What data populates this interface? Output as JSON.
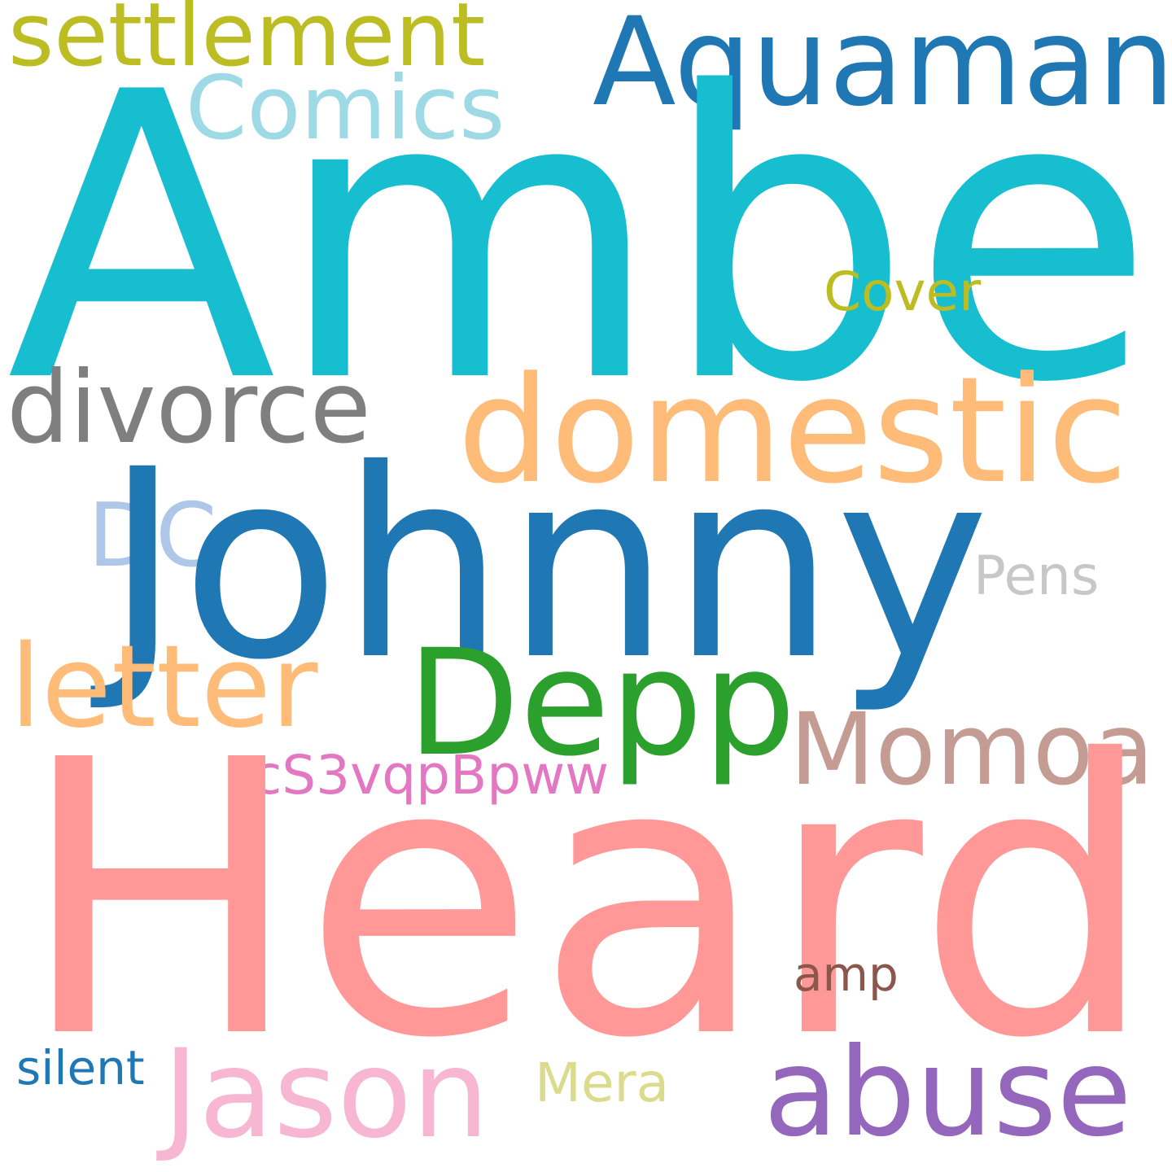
{
  "words": {
    "amber": {
      "text": "Amber",
      "color": "#17becf"
    },
    "heard": {
      "text": "Heard",
      "color": "#ff9896"
    },
    "johnny": {
      "text": "Johnny",
      "color": "#1f77b4"
    },
    "domestic": {
      "text": "domestic",
      "color": "#ffbb78"
    },
    "depp": {
      "text": "Depp",
      "color": "#2ca02c"
    },
    "aquaman": {
      "text": "Aquaman",
      "color": "#1f77b4"
    },
    "abuse": {
      "text": "abuse",
      "color": "#9467bd"
    },
    "jason": {
      "text": "Jason",
      "color": "#f7b6d2"
    },
    "letter": {
      "text": "letter",
      "color": "#ffbb78"
    },
    "divorce": {
      "text": "divorce",
      "color": "#7f7f7f"
    },
    "momoa": {
      "text": "Momoa",
      "color": "#c49c94"
    },
    "settlement": {
      "text": "settlement",
      "color": "#bcbd22"
    },
    "comics": {
      "text": "Comics",
      "color": "#9edae5"
    },
    "dc": {
      "text": "DC",
      "color": "#aec7e8"
    },
    "cover": {
      "text": "Cover",
      "color": "#bcbd22"
    },
    "pens": {
      "text": "Pens",
      "color": "#c7c7c7"
    },
    "code": {
      "text": "cS3vqpBpww",
      "color": "#e377c2"
    },
    "amp": {
      "text": "amp",
      "color": "#8c564b"
    },
    "silent": {
      "text": "silent",
      "color": "#1f77b4"
    },
    "mera": {
      "text": "Mera",
      "color": "#dbdb8d"
    }
  }
}
